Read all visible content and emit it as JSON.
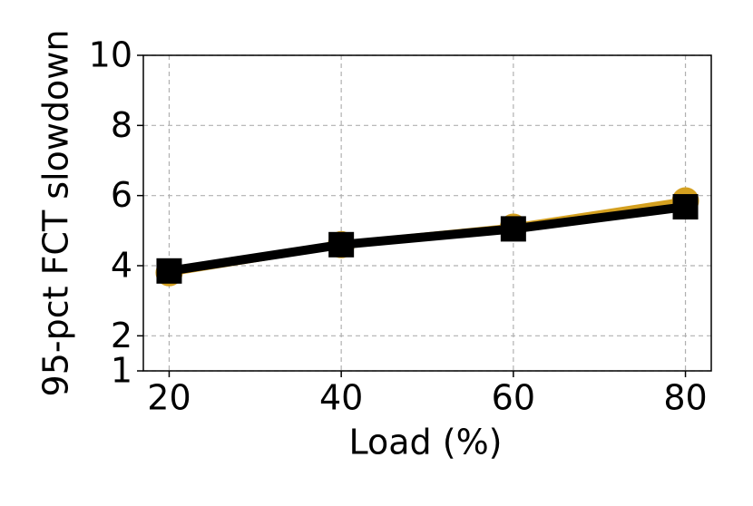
{
  "chart_data": {
    "type": "line",
    "x_label": "Load (%)",
    "y_label": "95-pct FCT slowdown",
    "x": [
      20,
      40,
      60,
      80
    ],
    "series": [
      {
        "color": "#d4a020",
        "marker": "circle",
        "values": [
          3.8,
          4.6,
          5.1,
          5.85
        ]
      },
      {
        "color": "#d62728",
        "marker": "none",
        "values": [
          3.75,
          4.55,
          5.0,
          5.65
        ]
      },
      {
        "color": "#000000",
        "marker": "square",
        "values": [
          3.85,
          4.6,
          5.05,
          5.68
        ]
      }
    ],
    "xlim": [
      17,
      83
    ],
    "xticks": [
      20,
      40,
      60,
      80
    ],
    "ylim": [
      1,
      10
    ],
    "yticks": [
      1,
      2,
      4,
      6,
      8,
      10
    ],
    "grid": true
  }
}
